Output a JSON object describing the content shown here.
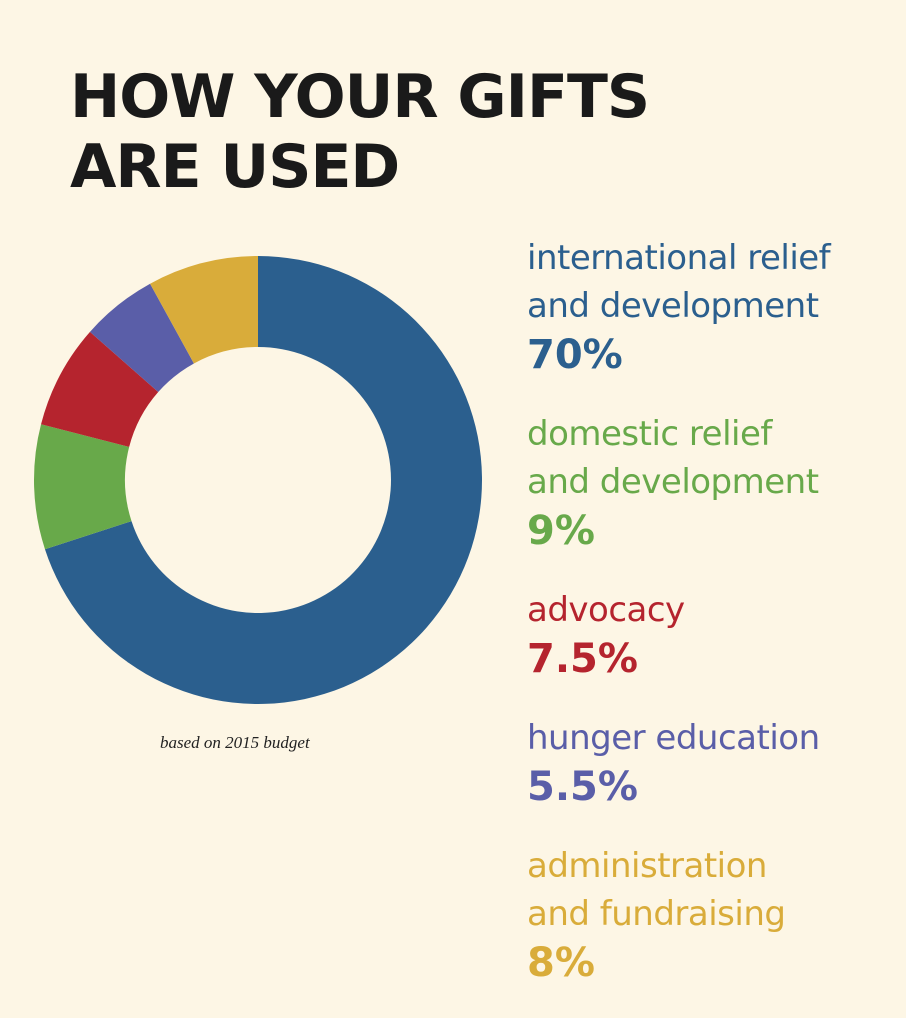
{
  "chart_data": {
    "type": "pie",
    "donut": true,
    "title": "HOW YOUR GIFTS\nARE USED",
    "note": "based on 2015 budget",
    "categories": [
      "international relief\nand development",
      "domestic relief\nand development",
      "advocacy",
      "hunger education",
      "administration\nand fundraising"
    ],
    "values": [
      70,
      9,
      7.5,
      5.5,
      8
    ],
    "value_labels": [
      "70%",
      "9%",
      "7.5%",
      "5.5%",
      "8%"
    ],
    "colors": [
      "#2b5f8e",
      "#68a94a",
      "#b5242e",
      "#5a5ea8",
      "#d9ac3a"
    ]
  }
}
